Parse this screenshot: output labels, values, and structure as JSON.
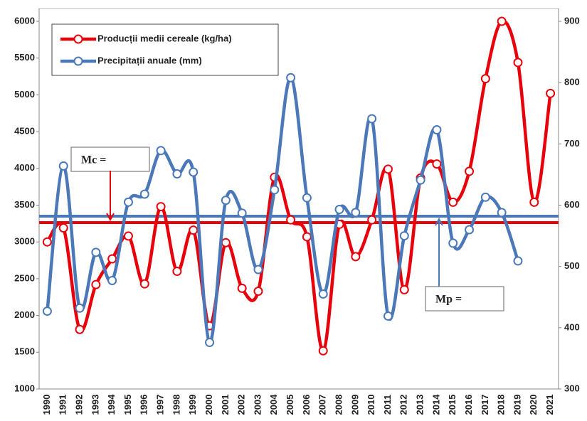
{
  "chart_data": {
    "type": "line",
    "categories": [
      "1990",
      "1991",
      "1992",
      "1993",
      "1994",
      "1995",
      "1996",
      "1997",
      "1998",
      "1999",
      "2000",
      "2001",
      "2002",
      "2003",
      "2004",
      "2005",
      "2006",
      "2007",
      "2008",
      "2009",
      "2010",
      "2011",
      "2012",
      "2013",
      "2014",
      "2015",
      "2016",
      "2017",
      "2018",
      "2019",
      "2020",
      "2021"
    ],
    "series": [
      {
        "name": "Producții medii cereale (kg/ha)",
        "color": "#e8000b",
        "axis": "y",
        "values": [
          3000,
          3190,
          1810,
          2420,
          2770,
          3080,
          2430,
          3480,
          2600,
          3160,
          1860,
          2990,
          2370,
          2330,
          3880,
          3300,
          3070,
          1520,
          3240,
          2800,
          3300,
          3990,
          2350,
          3870,
          4060,
          3540,
          3960,
          5220,
          6000,
          5440,
          3540,
          5020
        ]
      },
      {
        "name": "Precipitații anuale (mm)",
        "color": "#4a78b8",
        "axis": "y2",
        "values": [
          427,
          664,
          432,
          523,
          477,
          605,
          618,
          689,
          651,
          654,
          376,
          608,
          587,
          495,
          625,
          808,
          612,
          455,
          593,
          588,
          741,
          419,
          550,
          641,
          723,
          538,
          560,
          613,
          588,
          509,
          null,
          null
        ]
      }
    ],
    "mean_lines": [
      {
        "value": 3263,
        "axis": "y",
        "color": "#e8000b",
        "annotation": "Mc ="
      },
      {
        "value": 582,
        "axis": "y2",
        "color": "#4a78b8",
        "annotation": "Mp ="
      }
    ],
    "ylim": [
      1000,
      6000
    ],
    "yticks": [
      1000,
      1500,
      2000,
      2500,
      3000,
      3500,
      4000,
      4500,
      5000,
      5500,
      6000
    ],
    "y2lim": [
      300,
      900
    ],
    "y2ticks": [
      300,
      400,
      500,
      600,
      700,
      800,
      900
    ],
    "legend": "top-left"
  }
}
